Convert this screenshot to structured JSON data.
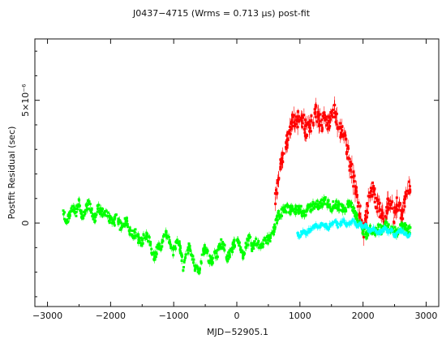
{
  "chart_data": {
    "type": "scatter",
    "title": "J0437−4715 (Wrms = 0.713 μs) post-fit",
    "xlabel": "MJD−52905.1",
    "ylabel": "Postfit Residual (sec)",
    "y_multiplier_label": "×10⁻⁶",
    "xlim": [
      -3200,
      3200
    ],
    "ylim": [
      -3.4,
      7.5
    ],
    "x_ticks": [
      -3000,
      -2000,
      -1000,
      0,
      1000,
      2000,
      3000
    ],
    "x_tick_labels": [
      "−3000",
      "−2000",
      "−1000",
      "0",
      "1000",
      "2000",
      "3000"
    ],
    "y_ticks": [
      0,
      5
    ],
    "y_tick_labels": [
      "0",
      "5×10⁻⁶"
    ],
    "y_units": "microseconds (×10⁻⁶ sec)",
    "grid": false,
    "legend": "none",
    "colors": {
      "red": "#ff0000",
      "green": "#00ff00",
      "cyan": "#00ffff",
      "axis": "#111111"
    },
    "series": [
      {
        "color": "red",
        "values_approx": {
          "x": [
            600,
            650,
            700,
            750,
            800,
            850,
            900,
            950,
            1000,
            1050,
            1100,
            1150,
            1200,
            1250,
            1300,
            1350,
            1400,
            1450,
            1500,
            1550,
            1600,
            1650,
            1700,
            1750,
            1800,
            1850,
            1900,
            1950,
            2000,
            2050,
            2100,
            2150,
            2200,
            2250,
            2300,
            2350,
            2400,
            2450,
            2500,
            2550,
            2600,
            2650,
            2700
          ],
          "y": [
            0.8,
            1.6,
            2.6,
            2.9,
            3.3,
            3.8,
            4.4,
            4.1,
            4.4,
            4.2,
            3.8,
            3.9,
            4.2,
            4.6,
            4.3,
            4.0,
            4.4,
            4.1,
            4.3,
            4.5,
            4.0,
            3.8,
            3.5,
            3.0,
            2.3,
            1.8,
            1.1,
            0.5,
            -0.4,
            0.3,
            1.2,
            1.4,
            1.0,
            0.6,
            0.4,
            0.2,
            0.8,
            0.6,
            0.3,
            0.9,
            0.4,
            0.6,
            1.4
          ]
        }
      },
      {
        "color": "green",
        "values_approx": {
          "x": [
            -2750,
            -2700,
            -2650,
            -2600,
            -2550,
            -2500,
            -2450,
            -2400,
            -2350,
            -2300,
            -2250,
            -2200,
            -2150,
            -2100,
            -2050,
            -2000,
            -1950,
            -1900,
            -1850,
            -1800,
            -1750,
            -1700,
            -1650,
            -1600,
            -1550,
            -1500,
            -1450,
            -1400,
            -1350,
            -1300,
            -1250,
            -1200,
            -1150,
            -1100,
            -1050,
            -1000,
            -950,
            -900,
            -850,
            -800,
            -750,
            -700,
            -650,
            -600,
            -550,
            -500,
            -450,
            -400,
            -350,
            -300,
            -250,
            -200,
            -150,
            -100,
            -50,
            0,
            50,
            100,
            150,
            200,
            250,
            300,
            350,
            400,
            450,
            500,
            550,
            600,
            650,
            700,
            750,
            800,
            850,
            900,
            950,
            1000,
            1050,
            1100,
            1150,
            1200,
            1250,
            1300,
            1350,
            1400,
            1450,
            1500,
            1550,
            1600,
            1650,
            1700,
            1750,
            1800,
            1850,
            1900,
            1950,
            2000,
            2050,
            2100,
            2150,
            2200,
            2250,
            2300,
            2350,
            2400,
            2450,
            2500,
            2550,
            2600,
            2650,
            2700
          ],
          "y": [
            0.5,
            0.0,
            0.3,
            0.6,
            0.4,
            0.9,
            0.2,
            0.6,
            0.8,
            0.5,
            0.2,
            0.6,
            0.5,
            0.3,
            0.4,
            0.1,
            0.0,
            0.3,
            -0.1,
            -0.2,
            0.2,
            -0.3,
            -0.5,
            -0.4,
            -0.7,
            -0.8,
            -0.4,
            -0.6,
            -1.1,
            -1.4,
            -0.9,
            -1.0,
            -0.6,
            -0.4,
            -0.9,
            -1.2,
            -0.6,
            -1.0,
            -1.8,
            -1.3,
            -0.9,
            -1.4,
            -1.9,
            -2.0,
            -1.3,
            -1.0,
            -1.4,
            -1.6,
            -1.3,
            -1.2,
            -0.8,
            -1.0,
            -1.4,
            -1.2,
            -0.9,
            -0.7,
            -1.0,
            -1.3,
            -0.9,
            -0.6,
            -1.1,
            -0.7,
            -0.9,
            -1.0,
            -0.7,
            -0.7,
            -0.5,
            -0.2,
            0.3,
            0.4,
            0.5,
            0.6,
            0.5,
            0.6,
            0.5,
            0.6,
            0.4,
            0.5,
            0.6,
            0.7,
            0.8,
            0.7,
            0.8,
            0.9,
            0.8,
            0.6,
            0.8,
            0.7,
            0.6,
            0.6,
            0.7,
            0.8,
            0.5,
            0.2,
            0.0,
            -0.3,
            -0.5,
            -0.2,
            -0.3,
            -0.4,
            -0.2,
            -0.3,
            -0.1,
            -0.2,
            -0.3,
            -0.3,
            -0.4,
            -0.2,
            -0.1,
            -0.3
          ]
        }
      },
      {
        "color": "cyan",
        "values_approx": {
          "x": [
            950,
            1000,
            1050,
            1100,
            1150,
            1200,
            1250,
            1300,
            1350,
            1400,
            1450,
            1500,
            1550,
            1600,
            1650,
            1700,
            1750,
            1800,
            1850,
            1900,
            1950,
            2000,
            2050,
            2100,
            2150,
            2200,
            2250,
            2300,
            2350,
            2400,
            2450,
            2500,
            2550,
            2600,
            2650,
            2700
          ],
          "y": [
            -0.4,
            -0.5,
            -0.3,
            -0.4,
            -0.3,
            -0.2,
            -0.1,
            -0.2,
            0.0,
            -0.1,
            -0.2,
            0.0,
            0.1,
            -0.1,
            0.0,
            0.1,
            -0.1,
            0.0,
            0.1,
            -0.1,
            0.0,
            -0.2,
            -0.1,
            -0.3,
            -0.2,
            -0.3,
            -0.4,
            -0.3,
            -0.2,
            -0.4,
            -0.3,
            -0.5,
            -0.4,
            -0.3,
            -0.4,
            -0.5
          ]
        }
      }
    ]
  }
}
